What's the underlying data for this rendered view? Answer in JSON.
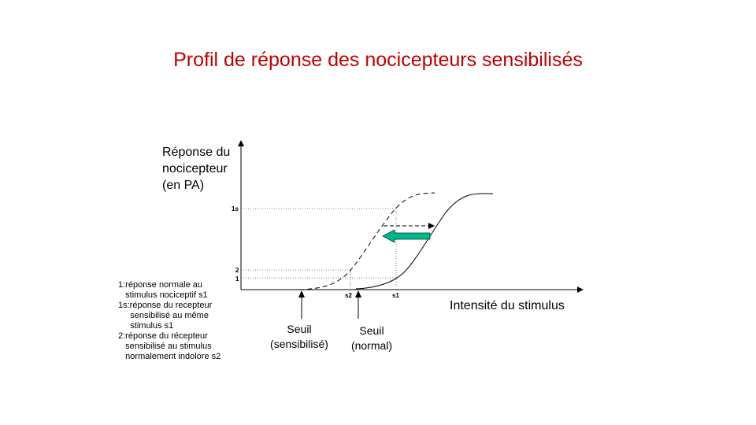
{
  "title": "Profil de réponse des nocicepteurs sensibilisés",
  "y_axis_label": "Réponse du\nnocicepteur\n(en PA)",
  "x_axis_label": "Intensité du stimulus",
  "y_ticks": {
    "t1s": "1s",
    "t2": "2",
    "t1": "1"
  },
  "x_ticks": {
    "s2": "s2",
    "s1": "s1"
  },
  "legend": [
    "1:réponse normale au",
    "   stimulus nociceptif s1",
    "1s:réponse du recepteur",
    "     sensibilisé au même",
    "     stimulus s1",
    "2:réponse du récepteur",
    "   sensibilisé au stimulus",
    "   normalement indolore s2"
  ],
  "threshold_sensitized": "Seuil\n(sensibilisé)",
  "threshold_normal": "Seuil\n(normal)",
  "colors": {
    "title": "#c00000",
    "shift_arrow": "#00b68a"
  }
}
